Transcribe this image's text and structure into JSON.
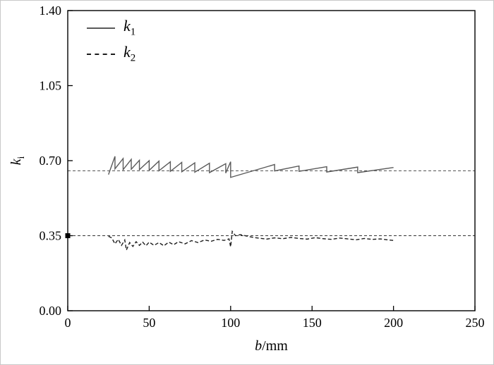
{
  "chart_data": {
    "type": "line",
    "title": "",
    "xlabel_italic": "b",
    "xlabel_rest": "/mm",
    "ylabel_base": "k",
    "ylabel_sub": "i",
    "xlim": [
      0,
      250
    ],
    "ylim": [
      0,
      1.4
    ],
    "xticks": [
      "0",
      "50",
      "100",
      "150",
      "200",
      "250"
    ],
    "xtick_values": [
      0,
      50,
      100,
      150,
      200,
      250
    ],
    "yticks": [
      "0.00",
      "0.35",
      "0.70",
      "1.05",
      "1.40"
    ],
    "ytick_values": [
      0,
      0.35,
      0.7,
      1.05,
      1.4
    ],
    "grid": false,
    "legend_position": "top-left-inside",
    "legend": [
      {
        "base": "k",
        "sub": "1",
        "style": "solid"
      },
      {
        "base": "k",
        "sub": "2",
        "style": "dashed"
      }
    ],
    "reference_lines": [
      {
        "y": 0.653,
        "style": "dashed",
        "color": "#333333"
      },
      {
        "y": 0.35,
        "style": "dashed",
        "color": "#333333"
      }
    ],
    "marker": {
      "x": 0,
      "y": 0.35,
      "shape": "square",
      "color": "#000000"
    },
    "series": [
      {
        "name": "k1",
        "style": "solid",
        "color": "#5a5a5a",
        "points": [
          [
            25,
            0.635
          ],
          [
            29,
            0.72
          ],
          [
            29,
            0.662
          ],
          [
            34,
            0.71
          ],
          [
            34,
            0.658
          ],
          [
            39,
            0.706
          ],
          [
            39,
            0.66
          ],
          [
            44,
            0.702
          ],
          [
            44,
            0.658
          ],
          [
            50,
            0.7
          ],
          [
            50,
            0.655
          ],
          [
            56,
            0.698
          ],
          [
            56,
            0.653
          ],
          [
            63,
            0.695
          ],
          [
            63,
            0.65
          ],
          [
            70,
            0.692
          ],
          [
            70,
            0.648
          ],
          [
            78,
            0.69
          ],
          [
            78,
            0.646
          ],
          [
            87,
            0.688
          ],
          [
            87,
            0.644
          ],
          [
            97,
            0.686
          ],
          [
            97,
            0.642
          ],
          [
            100,
            0.695
          ],
          [
            100,
            0.622
          ],
          [
            127,
            0.682
          ],
          [
            127,
            0.652
          ],
          [
            142,
            0.675
          ],
          [
            142,
            0.65
          ],
          [
            159,
            0.672
          ],
          [
            159,
            0.647
          ],
          [
            178,
            0.67
          ],
          [
            178,
            0.644
          ],
          [
            200,
            0.668
          ]
        ]
      },
      {
        "name": "k2",
        "style": "dashed",
        "color": "#1c1c1c",
        "points": [
          [
            25,
            0.347
          ],
          [
            27,
            0.34
          ],
          [
            29,
            0.312
          ],
          [
            31,
            0.333
          ],
          [
            33,
            0.305
          ],
          [
            35,
            0.33
          ],
          [
            36,
            0.283
          ],
          [
            38,
            0.318
          ],
          [
            40,
            0.3
          ],
          [
            42,
            0.322
          ],
          [
            44,
            0.305
          ],
          [
            46,
            0.32
          ],
          [
            48,
            0.303
          ],
          [
            50,
            0.32
          ],
          [
            53,
            0.305
          ],
          [
            56,
            0.318
          ],
          [
            59,
            0.303
          ],
          [
            62,
            0.32
          ],
          [
            65,
            0.308
          ],
          [
            68,
            0.322
          ],
          [
            72,
            0.312
          ],
          [
            76,
            0.327
          ],
          [
            80,
            0.318
          ],
          [
            84,
            0.33
          ],
          [
            88,
            0.324
          ],
          [
            92,
            0.333
          ],
          [
            96,
            0.328
          ],
          [
            99,
            0.335
          ],
          [
            100,
            0.298
          ],
          [
            101,
            0.37
          ],
          [
            103,
            0.35
          ],
          [
            106,
            0.355
          ],
          [
            110,
            0.348
          ],
          [
            114,
            0.342
          ],
          [
            118,
            0.338
          ],
          [
            122,
            0.334
          ],
          [
            127,
            0.34
          ],
          [
            132,
            0.336
          ],
          [
            137,
            0.342
          ],
          [
            142,
            0.337
          ],
          [
            147,
            0.334
          ],
          [
            152,
            0.341
          ],
          [
            157,
            0.336
          ],
          [
            162,
            0.333
          ],
          [
            167,
            0.339
          ],
          [
            172,
            0.335
          ],
          [
            177,
            0.331
          ],
          [
            182,
            0.337
          ],
          [
            187,
            0.333
          ],
          [
            192,
            0.335
          ],
          [
            196,
            0.331
          ],
          [
            200,
            0.328
          ]
        ]
      }
    ]
  }
}
